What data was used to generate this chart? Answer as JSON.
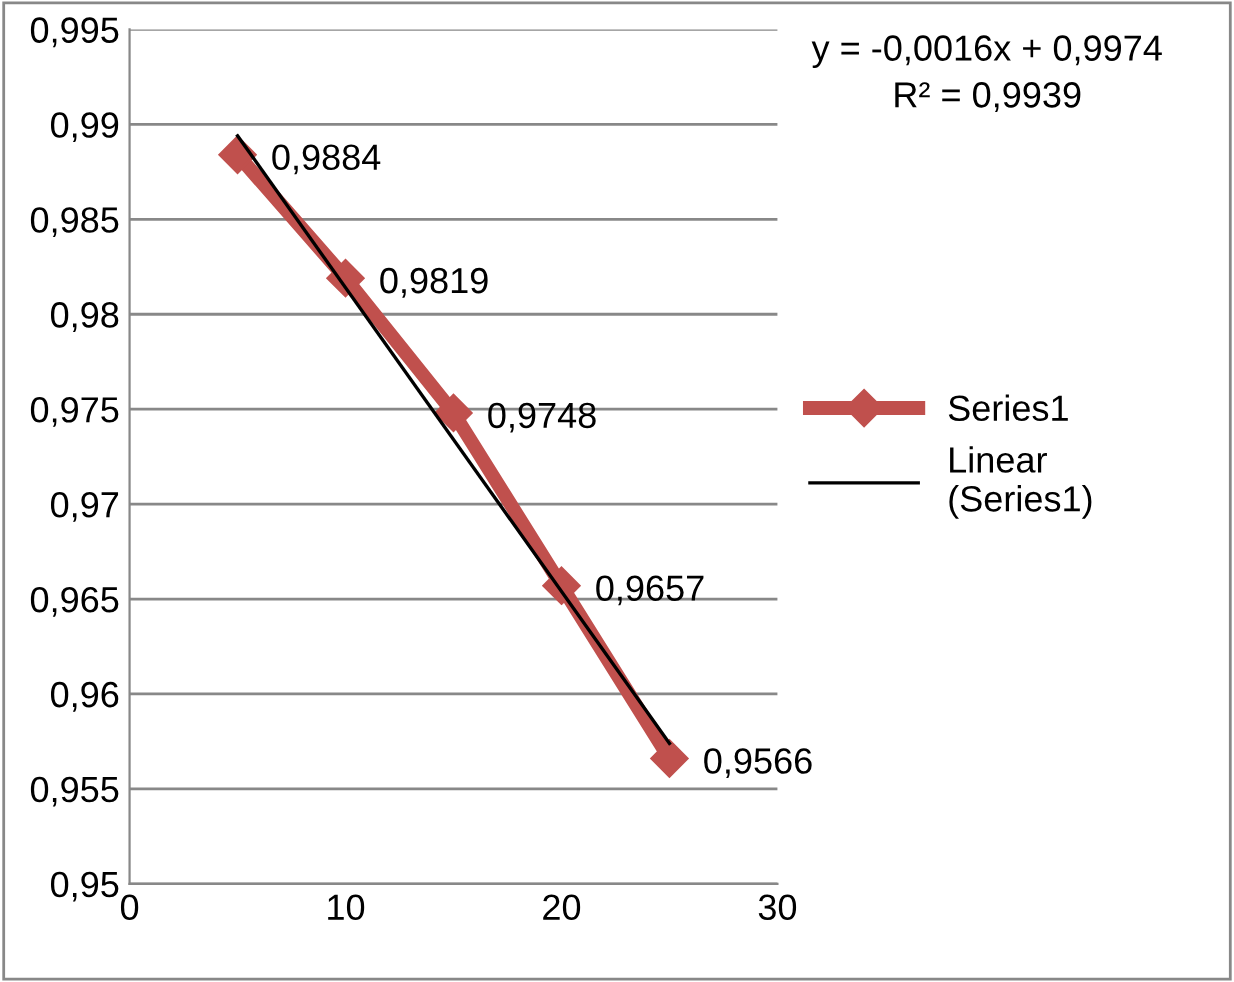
{
  "chart_data": {
    "type": "line",
    "x": [
      5,
      10,
      15,
      20,
      25
    ],
    "series": [
      {
        "name": "Series1",
        "color": "#c0504d",
        "values": [
          0.9884,
          0.9819,
          0.9748,
          0.9657,
          0.9566
        ],
        "marker": "diamond",
        "value_labels": [
          "0,9884",
          "0,9819",
          "0,9748",
          "0,9657",
          "0,9566"
        ]
      },
      {
        "name": "Linear\n(Series1)",
        "color": "#000000",
        "type": "line",
        "x": [
          5,
          25
        ],
        "values": [
          0.9894,
          0.9574
        ],
        "marker": "none"
      }
    ],
    "xlim": [
      0,
      30
    ],
    "xticks": [
      0,
      10,
      20,
      30
    ],
    "ylim": [
      0.95,
      0.995
    ],
    "yticks": [
      {
        "value": 0.95,
        "label": "0,95"
      },
      {
        "value": 0.955,
        "label": "0,955"
      },
      {
        "value": 0.96,
        "label": "0,96"
      },
      {
        "value": 0.965,
        "label": "0,965"
      },
      {
        "value": 0.97,
        "label": "0,97"
      },
      {
        "value": 0.975,
        "label": "0,975"
      },
      {
        "value": 0.98,
        "label": "0,98"
      },
      {
        "value": 0.985,
        "label": "0,985"
      },
      {
        "value": 0.99,
        "label": "0,99"
      },
      {
        "value": 0.995,
        "label": "0,995"
      }
    ],
    "grid": "y",
    "legend": "right",
    "annotations": [
      "y = -0,0016x + 0,9974\nR² = 0,9939"
    ]
  }
}
